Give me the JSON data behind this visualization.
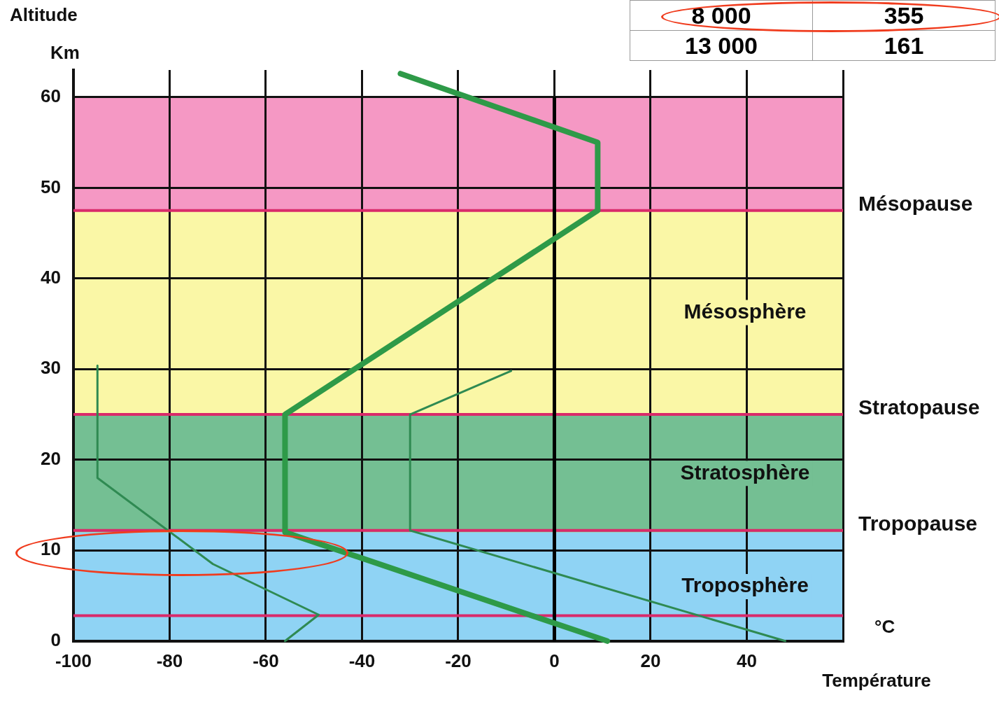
{
  "chart_data": {
    "type": "line",
    "ylabel": "Altitude",
    "xlabel": "Température",
    "annotations": [
      "Km",
      "°C",
      "8 000",
      "355",
      "13 000",
      "161"
    ],
    "xlim": [
      -100,
      60
    ],
    "xticks": [
      -100,
      -80,
      -60,
      -40,
      -20,
      0,
      20,
      40,
      {
        "value": 60,
        "label": null
      }
    ],
    "ylim": [
      0,
      63
    ],
    "yticks": [
      0,
      10,
      20,
      30,
      40,
      50,
      60
    ],
    "grid": true,
    "marker": "none",
    "line_style": "solid",
    "legend": false,
    "series": [
      {
        "color": "#2e9a48",
        "x": [
          11,
          -56,
          -56,
          9,
          9,
          -32
        ],
        "values": [
          0,
          12,
          25,
          47.5,
          55,
          62.6
        ]
      },
      {
        "color": "#2f8a52",
        "x": [
          -56,
          -49,
          -71,
          -95,
          -95
        ],
        "values": [
          0,
          2.9,
          8.5,
          18,
          30.4
        ]
      },
      {
        "color": "#2f8a52",
        "x": [
          48,
          -30,
          -30,
          -9
        ],
        "values": [
          0,
          12.2,
          25,
          29.8
        ]
      }
    ],
    "bands": [
      {
        "axis": "y",
        "from": 0,
        "to": 12,
        "color": "#8fd3f4",
        "label": "Troposphère"
      },
      {
        "axis": "y",
        "from": 12,
        "to": 25,
        "color": "#74bf93",
        "label": "Stratosphère"
      },
      {
        "axis": "y",
        "from": 25,
        "to": 47.5,
        "color": "#faf7a6",
        "label": "Mésosphère"
      },
      {
        "axis": "y",
        "from": 47.5,
        "to": 60,
        "color": "#f598c4"
      }
    ],
    "ref_lines": [
      {
        "axis": "y",
        "value": 2.8,
        "color": "#d92a6a"
      },
      {
        "axis": "y",
        "value": 12.2,
        "color": "#d92a6a",
        "label": "Tropopause"
      },
      {
        "axis": "y",
        "value": 25,
        "color": "#d92a6a",
        "label": "Stratopause"
      },
      {
        "axis": "y",
        "value": 47.5,
        "color": "#d92a6a",
        "label": "Mésopause"
      },
      {
        "axis": "x",
        "value": 0,
        "color": "#000000"
      }
    ]
  }
}
